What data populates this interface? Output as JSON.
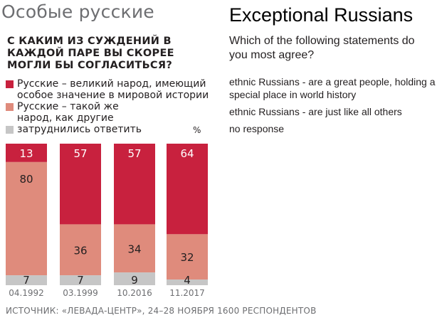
{
  "title_ru": "Особые русские",
  "question_ru": "С каким из суждений в каждой паре вы скорее могли бы согласиться?",
  "legend_ru": [
    {
      "label": "Русские – великий народ, имеющий особое значение в мировой истории",
      "color": "#c8213e"
    },
    {
      "label": "Русские – такой же народ, как другие",
      "color": "#df8b7c"
    },
    {
      "label": "затруднились ответить",
      "color": "#c6c6c6"
    }
  ],
  "percent_sign": "%",
  "title_en": "Exceptional Russians",
  "question_en": "Which of the following statements do you most agree?",
  "legend_en": [
    "ethnic Russians - are a great people, holding a special place in world history",
    "ethnic Russians - are just like all others",
    "no response"
  ],
  "source": "Источник: «Левада-центр», 24–28 ноября 1600 респондентов",
  "chart_data": {
    "type": "bar",
    "stacked": true,
    "categories": [
      "04.1992",
      "03.1999",
      "10.2016",
      "11.2017"
    ],
    "series": [
      {
        "name": "Русские – великий народ, имеющий особое значение в мировой истории",
        "color": "#c8213e",
        "values": [
          13,
          57,
          57,
          64
        ]
      },
      {
        "name": "Русские – такой же народ, как другие",
        "color": "#df8b7c",
        "values": [
          80,
          36,
          34,
          32
        ]
      },
      {
        "name": "затруднились ответить",
        "color": "#c6c6c6",
        "values": [
          7,
          7,
          9,
          4
        ]
      }
    ],
    "ylim": [
      0,
      100
    ]
  }
}
